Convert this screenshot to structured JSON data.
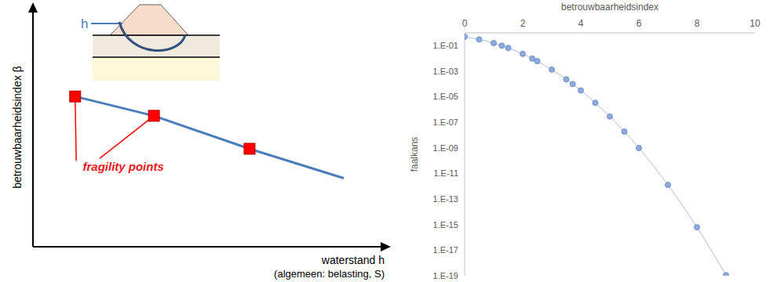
{
  "chart_data": [
    {
      "type": "line",
      "ylabel": "betrouwbaarheidsindex β",
      "xlabel": "waterstand h",
      "xlabel_note": "(algemeen: belasting, S)",
      "annotation": "fragility points",
      "inset_label": "h",
      "xlim": [
        0,
        10
      ],
      "ylim": [
        0,
        10
      ],
      "xticks": [],
      "yticks": [],
      "tick_labels": false,
      "grid": false,
      "series": [
        {
          "type": "line",
          "color": "#4a7ebb",
          "x": [
            1.2,
            3.44,
            6.16,
            8.84
          ],
          "values": [
            6.29,
            5.48,
            4.1,
            2.87
          ]
        },
        {
          "type": "scatter",
          "marker": "square",
          "color": "#ff0000",
          "x": [
            1.2,
            3.44,
            6.16
          ],
          "values": [
            6.29,
            5.48,
            4.1
          ]
        }
      ]
    },
    {
      "type": "line",
      "xlabel": "betrouwbaarheidsindex",
      "ylabel": "faalkans",
      "log": "y",
      "grid": false,
      "xlim": [
        0,
        10
      ],
      "xticks": [
        0,
        2,
        4,
        6,
        8,
        10
      ],
      "ylim": [
        1e-19,
        1
      ],
      "yticks": [
        {
          "value": 0.1,
          "label": "1.E-01"
        },
        {
          "value": 0.001,
          "label": "1.E-03"
        },
        {
          "value": 1e-05,
          "label": "1.E-05"
        },
        {
          "value": 1e-07,
          "label": "1.E-07"
        },
        {
          "value": 1e-09,
          "label": "1.E-09"
        },
        {
          "value": 1e-11,
          "label": "1.E-11"
        },
        {
          "value": 1e-13,
          "label": "1.E-13"
        },
        {
          "value": 1e-15,
          "label": "1.E-15"
        },
        {
          "value": 1e-17,
          "label": "1.E-17"
        },
        {
          "value": 1e-19,
          "label": "1.E-19"
        }
      ],
      "x": [
        0,
        0.5,
        1,
        1.28,
        1.5,
        2,
        2.33,
        2.5,
        3,
        3.5,
        3.72,
        4,
        4.5,
        5,
        5.5,
        6,
        7,
        8,
        9
      ],
      "values": [
        0.5,
        0.3085,
        0.1587,
        0.1,
        0.0668,
        0.02275,
        0.0099,
        0.0062,
        0.00135,
        0.000233,
        0.0001,
        3.17e-05,
        3.4e-06,
        2.87e-07,
        1.9e-08,
        9.9e-10,
        1.28e-12,
        6.2e-16,
        1.1e-19
      ],
      "color": "#8faadc",
      "marker": "circle"
    }
  ]
}
